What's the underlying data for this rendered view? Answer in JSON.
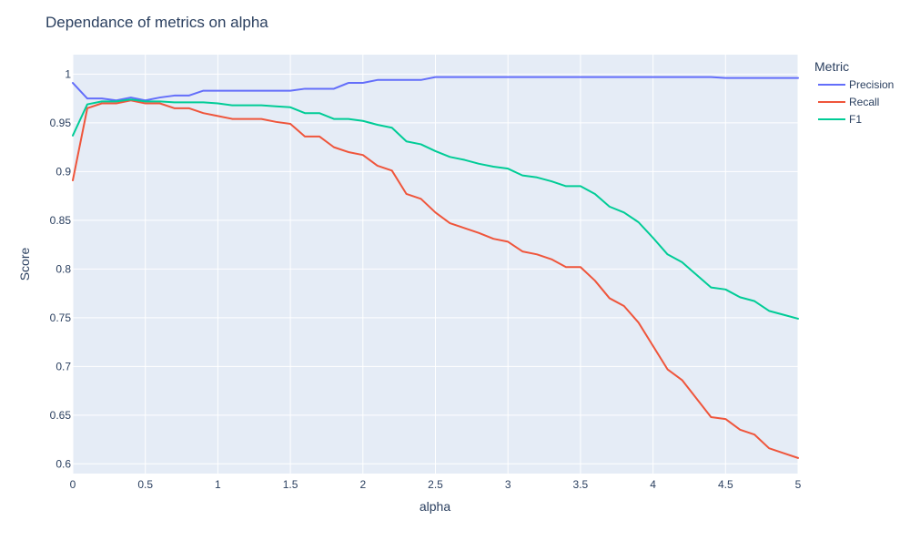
{
  "chart_data": {
    "type": "line",
    "title": "Dependance of metrics on alpha",
    "xlabel": "alpha",
    "ylabel": "Score",
    "xlim": [
      0,
      5
    ],
    "ylim": [
      0.59,
      1.02
    ],
    "x_ticks": [
      0,
      0.5,
      1,
      1.5,
      2,
      2.5,
      3,
      3.5,
      4,
      4.5,
      5
    ],
    "y_ticks": [
      0.6,
      0.65,
      0.7,
      0.75,
      0.8,
      0.85,
      0.9,
      0.95,
      1
    ],
    "grid": true,
    "legend_title": "Metric",
    "legend_position": "right",
    "colors": {
      "Precision": "#636efa",
      "Recall": "#ef553b",
      "F1": "#00cc96",
      "plot_bg": "#e5ecf6",
      "grid": "#ffffff",
      "text": "#2a3f5f"
    },
    "x": [
      0,
      0.1,
      0.2,
      0.3,
      0.4,
      0.5,
      0.6,
      0.7,
      0.8,
      0.9,
      1.0,
      1.1,
      1.2,
      1.3,
      1.4,
      1.5,
      1.6,
      1.7,
      1.8,
      1.9,
      2.0,
      2.1,
      2.2,
      2.3,
      2.4,
      2.5,
      2.6,
      2.7,
      2.8,
      2.9,
      3.0,
      3.1,
      3.2,
      3.3,
      3.4,
      3.5,
      3.6,
      3.7,
      3.8,
      3.9,
      4.0,
      4.1,
      4.2,
      4.3,
      4.4,
      4.5,
      4.6,
      4.7,
      4.8,
      4.9,
      5.0
    ],
    "series": [
      {
        "name": "Precision",
        "values": [
          0.991,
          0.975,
          0.975,
          0.973,
          0.976,
          0.973,
          0.976,
          0.978,
          0.978,
          0.983,
          0.983,
          0.983,
          0.983,
          0.983,
          0.983,
          0.983,
          0.985,
          0.985,
          0.985,
          0.991,
          0.991,
          0.994,
          0.994,
          0.994,
          0.994,
          0.997,
          0.997,
          0.997,
          0.997,
          0.997,
          0.997,
          0.997,
          0.997,
          0.997,
          0.997,
          0.997,
          0.997,
          0.997,
          0.997,
          0.997,
          0.997,
          0.997,
          0.997,
          0.997,
          0.997,
          0.996,
          0.996,
          0.996,
          0.996,
          0.996,
          0.996
        ]
      },
      {
        "name": "Recall",
        "values": [
          0.891,
          0.965,
          0.97,
          0.97,
          0.973,
          0.97,
          0.97,
          0.965,
          0.965,
          0.96,
          0.957,
          0.954,
          0.954,
          0.954,
          0.951,
          0.949,
          0.936,
          0.936,
          0.925,
          0.92,
          0.917,
          0.906,
          0.901,
          0.877,
          0.872,
          0.858,
          0.847,
          0.842,
          0.837,
          0.831,
          0.828,
          0.818,
          0.815,
          0.81,
          0.802,
          0.802,
          0.788,
          0.77,
          0.762,
          0.745,
          0.721,
          0.697,
          0.686,
          0.667,
          0.648,
          0.646,
          0.635,
          0.63,
          0.616,
          0.611,
          0.606
        ]
      },
      {
        "name": "F1",
        "values": [
          0.937,
          0.969,
          0.972,
          0.972,
          0.974,
          0.972,
          0.972,
          0.971,
          0.971,
          0.971,
          0.97,
          0.968,
          0.968,
          0.968,
          0.967,
          0.966,
          0.96,
          0.96,
          0.954,
          0.954,
          0.952,
          0.948,
          0.945,
          0.931,
          0.928,
          0.921,
          0.915,
          0.912,
          0.908,
          0.905,
          0.903,
          0.896,
          0.894,
          0.89,
          0.885,
          0.885,
          0.877,
          0.864,
          0.858,
          0.848,
          0.832,
          0.815,
          0.807,
          0.794,
          0.781,
          0.779,
          0.771,
          0.767,
          0.757,
          0.753,
          0.749
        ]
      }
    ]
  }
}
